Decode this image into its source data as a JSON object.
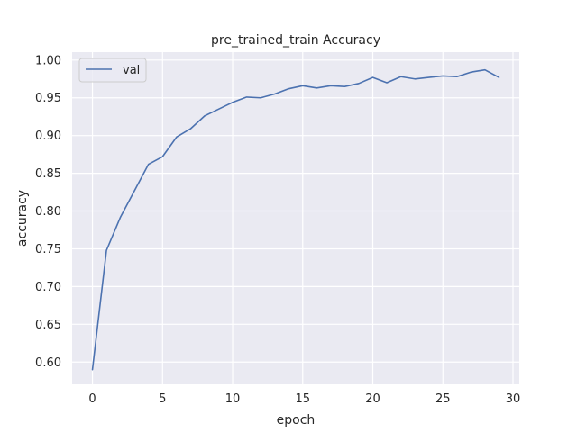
{
  "chart_data": {
    "type": "line",
    "title": "pre_trained_train Accuracy",
    "xlabel": "epoch",
    "ylabel": "accuracy",
    "xlim": [
      -1.45,
      30.45
    ],
    "ylim": [
      0.5705,
      1.0105
    ],
    "xticks": [
      0,
      5,
      10,
      15,
      20,
      25,
      30
    ],
    "yticks": [
      0.6,
      0.65,
      0.7,
      0.75,
      0.8,
      0.85,
      0.9,
      0.95,
      1.0
    ],
    "grid": true,
    "legend_position": "upper-left",
    "colors": {
      "plot_bg": "#eaeaf2",
      "grid": "#ffffff",
      "line": "#4c72b0"
    },
    "series": [
      {
        "name": "val",
        "x": [
          0,
          1,
          2,
          3,
          4,
          5,
          6,
          7,
          8,
          9,
          10,
          11,
          12,
          13,
          14,
          15,
          16,
          17,
          18,
          19,
          20,
          21,
          22,
          23,
          24,
          25,
          26,
          27,
          28,
          29
        ],
        "values": [
          0.59,
          0.748,
          0.792,
          0.827,
          0.862,
          0.872,
          0.898,
          0.909,
          0.926,
          0.935,
          0.944,
          0.951,
          0.95,
          0.955,
          0.962,
          0.966,
          0.963,
          0.966,
          0.965,
          0.969,
          0.977,
          0.97,
          0.978,
          0.975,
          0.977,
          0.979,
          0.978,
          0.984,
          0.987,
          0.977
        ]
      }
    ]
  }
}
